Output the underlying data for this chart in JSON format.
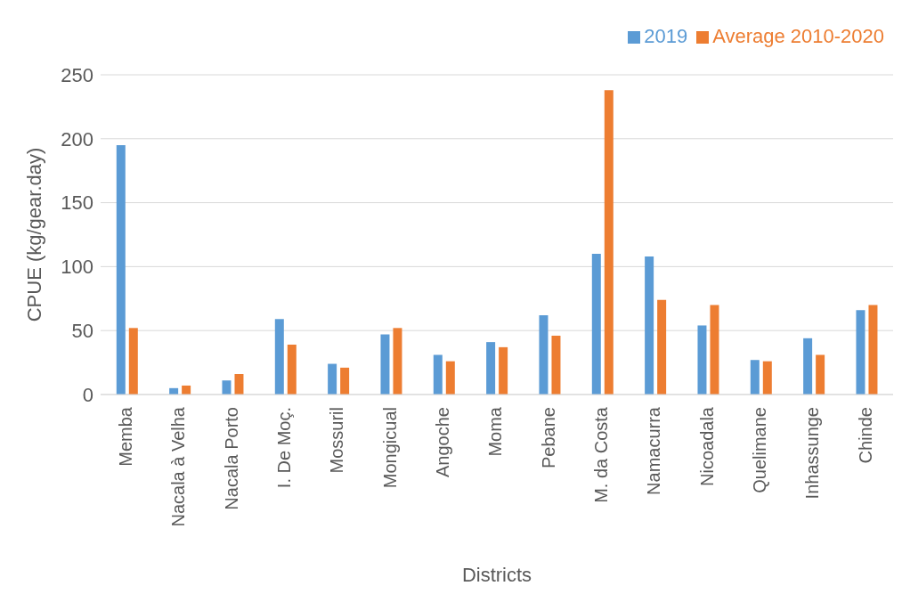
{
  "chart_data": {
    "type": "bar",
    "xlabel": "Districts",
    "ylabel": "CPUE (kg/gear.day)",
    "categories": [
      "Memba",
      "Nacala à Velha",
      "Nacala Porto",
      "I. De Moç.",
      "Mossuril",
      "Mongicual",
      "Angoche",
      "Moma",
      "Pebane",
      "M. da Costa",
      "Namacurra",
      "Nicoadala",
      "Quelimane",
      "Inhassunge",
      "Chinde"
    ],
    "series": [
      {
        "name": "2019",
        "color": "#5b9bd5",
        "values": [
          195,
          5,
          11,
          59,
          24,
          47,
          31,
          41,
          62,
          110,
          108,
          54,
          27,
          44,
          66
        ]
      },
      {
        "name": "Average 2010-2020",
        "color": "#ed7d31",
        "values": [
          52,
          7,
          16,
          39,
          21,
          52,
          26,
          37,
          46,
          238,
          74,
          70,
          26,
          31,
          70
        ]
      }
    ],
    "ylim": [
      0,
      250
    ],
    "yticks": [
      0,
      50,
      100,
      150,
      200,
      250
    ],
    "grid": "y",
    "legend": "top right"
  }
}
